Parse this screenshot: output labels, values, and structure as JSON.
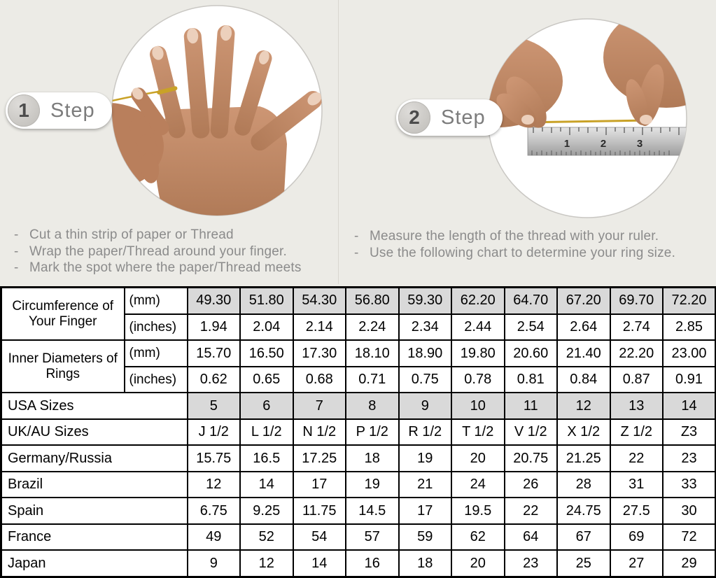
{
  "ui": {
    "bullet_char": "-"
  },
  "steps": [
    {
      "number": "1",
      "label": "Step",
      "photo": "hand-with-thread-around-finger",
      "instructions": [
        "Cut a thin strip of paper or Thread",
        "Wrap the paper/Thread around your finger.",
        "Mark the spot where the paper/Thread meets"
      ]
    },
    {
      "number": "2",
      "label": "Step",
      "photo": "hands-measuring-thread-with-ruler",
      "ruler_numbers": [
        "1",
        "2",
        "3"
      ],
      "instructions": [
        "Measure the length of the thread with your ruler.",
        "Use the following chart to determine your ring size."
      ]
    }
  ],
  "chart_data": {
    "type": "table",
    "row_groups": [
      {
        "label": "Circumference of Your Finger",
        "rows": [
          {
            "sublabel": "(mm)",
            "highlight": true,
            "values": [
              "49.30",
              "51.80",
              "54.30",
              "56.80",
              "59.30",
              "62.20",
              "64.70",
              "67.20",
              "69.70",
              "72.20"
            ]
          },
          {
            "sublabel": "(inches)",
            "highlight": false,
            "values": [
              "1.94",
              "2.04",
              "2.14",
              "2.24",
              "2.34",
              "2.44",
              "2.54",
              "2.64",
              "2.74",
              "2.85"
            ]
          }
        ]
      },
      {
        "label": "Inner Diameters of Rings",
        "rows": [
          {
            "sublabel": "(mm)",
            "highlight": false,
            "values": [
              "15.70",
              "16.50",
              "17.30",
              "18.10",
              "18.90",
              "19.80",
              "20.60",
              "21.40",
              "22.20",
              "23.00"
            ]
          },
          {
            "sublabel": "(inches)",
            "highlight": false,
            "values": [
              "0.62",
              "0.65",
              "0.68",
              "0.71",
              "0.75",
              "0.78",
              "0.81",
              "0.84",
              "0.87",
              "0.91"
            ]
          }
        ]
      }
    ],
    "size_rows": [
      {
        "label": "USA Sizes",
        "highlight": true,
        "values": [
          "5",
          "6",
          "7",
          "8",
          "9",
          "10",
          "11",
          "12",
          "13",
          "14"
        ]
      },
      {
        "label": "UK/AU Sizes",
        "highlight": false,
        "values": [
          "J 1/2",
          "L 1/2",
          "N 1/2",
          "P 1/2",
          "R 1/2",
          "T 1/2",
          "V 1/2",
          "X 1/2",
          "Z 1/2",
          "Z3"
        ]
      },
      {
        "label": "Germany/Russia",
        "highlight": false,
        "values": [
          "15.75",
          "16.5",
          "17.25",
          "18",
          "19",
          "20",
          "20.75",
          "21.25",
          "22",
          "23"
        ]
      },
      {
        "label": "Brazil",
        "highlight": false,
        "values": [
          "12",
          "14",
          "17",
          "19",
          "21",
          "24",
          "26",
          "28",
          "31",
          "33"
        ]
      },
      {
        "label": "Spain",
        "highlight": false,
        "values": [
          "6.75",
          "9.25",
          "11.75",
          "14.5",
          "17",
          "19.5",
          "22",
          "24.75",
          "27.5",
          "30"
        ]
      },
      {
        "label": "France",
        "highlight": false,
        "values": [
          "49",
          "52",
          "54",
          "57",
          "59",
          "62",
          "64",
          "67",
          "69",
          "72"
        ]
      },
      {
        "label": "Japan",
        "highlight": false,
        "values": [
          "9",
          "12",
          "14",
          "16",
          "18",
          "20",
          "23",
          "25",
          "27",
          "29"
        ]
      }
    ]
  },
  "colors": {
    "background": "#ecebe6",
    "highlight_cell": "#d9d9d9",
    "thread_gold": "#c9a227",
    "instruction_text": "#8b8b8b",
    "table_border": "#000000"
  }
}
